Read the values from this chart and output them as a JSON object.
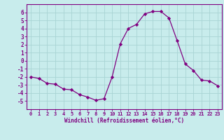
{
  "x": [
    0,
    1,
    2,
    3,
    4,
    5,
    6,
    7,
    8,
    9,
    10,
    11,
    12,
    13,
    14,
    15,
    16,
    17,
    18,
    19,
    20,
    21,
    22,
    23
  ],
  "y": [
    -2.0,
    -2.2,
    -2.8,
    -2.9,
    -3.5,
    -3.6,
    -4.2,
    -4.5,
    -4.9,
    -4.7,
    -2.0,
    2.1,
    4.0,
    4.5,
    5.8,
    6.1,
    6.1,
    5.3,
    2.5,
    -0.4,
    -1.2,
    -2.4,
    -2.5,
    -3.1
  ],
  "line_color": "#800080",
  "marker_color": "#800080",
  "bg_color": "#c8ecec",
  "grid_color": "#a8d4d4",
  "xlabel": "Windchill (Refroidissement éolien,°C)",
  "xlabel_color": "#800080",
  "tick_color": "#800080",
  "spine_color": "#800080",
  "ylim": [
    -6,
    7
  ],
  "xlim": [
    -0.5,
    23.5
  ],
  "yticks": [
    -5,
    -4,
    -3,
    -2,
    -1,
    0,
    1,
    2,
    3,
    4,
    5,
    6
  ],
  "xticks": [
    0,
    1,
    2,
    3,
    4,
    5,
    6,
    7,
    8,
    9,
    10,
    11,
    12,
    13,
    14,
    15,
    16,
    17,
    18,
    19,
    20,
    21,
    22,
    23
  ]
}
